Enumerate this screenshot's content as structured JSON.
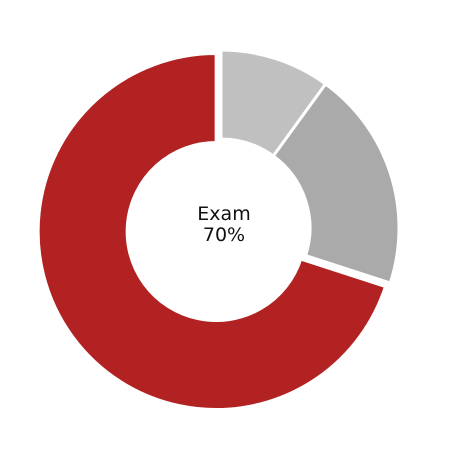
{
  "chart_data": {
    "type": "pie",
    "style": "donut",
    "slices": [
      {
        "label": "",
        "value": 10,
        "color": "#c0c0c0"
      },
      {
        "label": "",
        "value": 20,
        "color": "#aaaaaa"
      },
      {
        "label": "Exam",
        "value": 70,
        "color": "#b22222",
        "exploded": true
      }
    ],
    "center_label": {
      "name": "Exam",
      "value": "70%"
    },
    "legend": "none"
  }
}
